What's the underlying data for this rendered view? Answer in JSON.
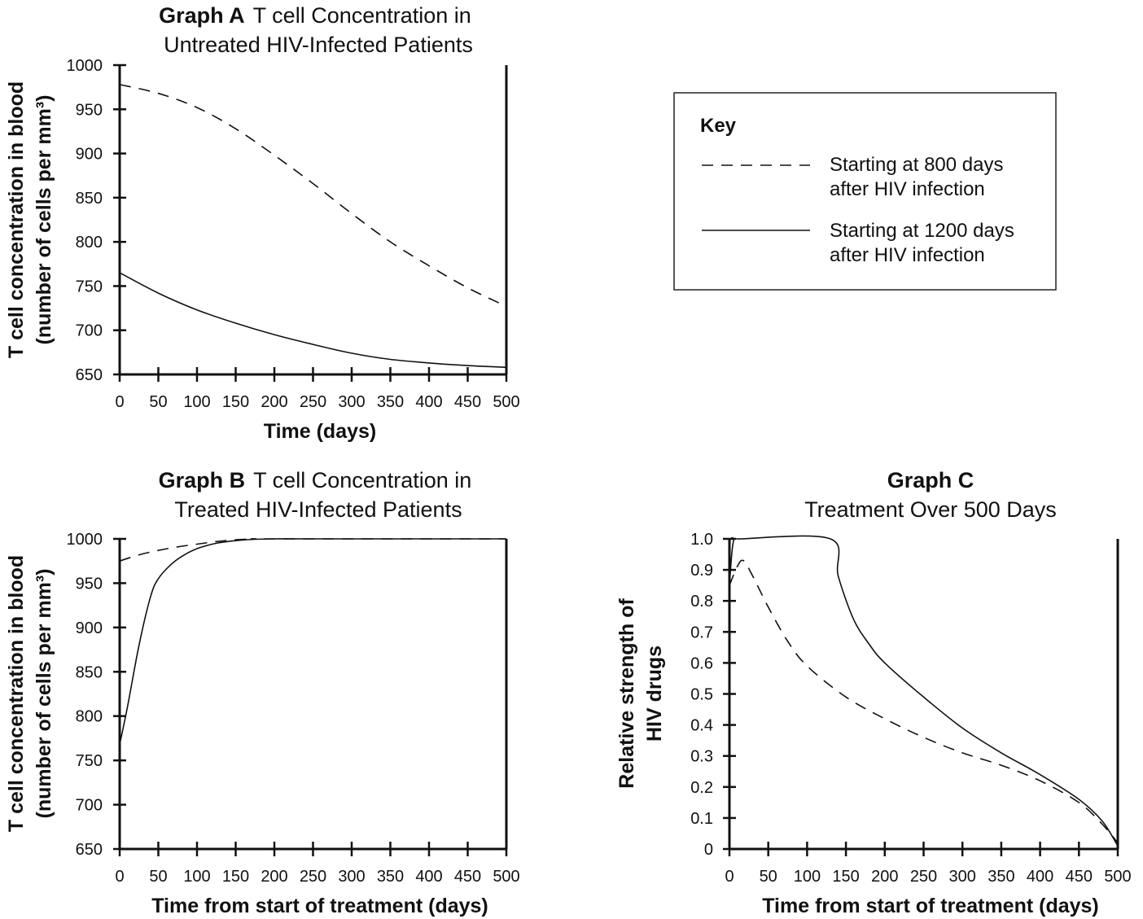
{
  "chart_data": [
    {
      "id": "A",
      "type": "line",
      "title_bold": "Graph A",
      "title_line1": "T cell Concentration in",
      "title_line2": "Untreated HIV-Infected Patients",
      "xlabel": "Time (days)",
      "ylabel_line1": "T cell concentration in blood",
      "ylabel_line2": "(number of cells per mm³)",
      "xlim": [
        0,
        500
      ],
      "ylim": [
        650,
        1000
      ],
      "xticks": [
        0,
        50,
        100,
        150,
        200,
        250,
        300,
        350,
        400,
        450,
        500
      ],
      "yticks": [
        650,
        700,
        750,
        800,
        850,
        900,
        950,
        1000
      ],
      "series": [
        {
          "style": "dashed",
          "x": [
            0,
            50,
            100,
            150,
            200,
            250,
            300,
            350,
            400,
            450,
            500
          ],
          "y": [
            978,
            968,
            952,
            928,
            898,
            866,
            832,
            800,
            773,
            748,
            727
          ]
        },
        {
          "style": "solid",
          "x": [
            0,
            50,
            100,
            150,
            200,
            250,
            300,
            350,
            400,
            450,
            500
          ],
          "y": [
            765,
            742,
            723,
            708,
            695,
            684,
            674,
            667,
            663,
            660,
            658
          ]
        }
      ]
    },
    {
      "id": "B",
      "type": "line",
      "title_bold": "Graph B",
      "title_line1": "T cell Concentration in",
      "title_line2": "Treated HIV-Infected Patients",
      "xlabel": "Time from start of treatment (days)",
      "ylabel_line1": "T cell concentration in blood",
      "ylabel_line2": "(number of cells per mm³)",
      "xlim": [
        0,
        500
      ],
      "ylim": [
        650,
        1000
      ],
      "xticks": [
        0,
        50,
        100,
        150,
        200,
        250,
        300,
        350,
        400,
        450,
        500
      ],
      "yticks": [
        650,
        700,
        750,
        800,
        850,
        900,
        950,
        1000
      ],
      "series": [
        {
          "style": "dashed",
          "x": [
            0,
            25,
            50,
            75,
            100,
            125,
            150,
            175,
            200,
            500
          ],
          "y": [
            975,
            982,
            987,
            991,
            994,
            997,
            999,
            1000,
            1000,
            1000
          ]
        },
        {
          "style": "solid",
          "x": [
            0,
            10,
            25,
            40,
            50,
            65,
            80,
            100,
            125,
            150,
            175,
            200,
            250,
            500
          ],
          "y": [
            768,
            810,
            880,
            935,
            955,
            970,
            980,
            989,
            995,
            998,
            999.5,
            1000,
            1000,
            1000
          ]
        }
      ]
    },
    {
      "id": "C",
      "type": "line",
      "title_bold": "Graph C",
      "title_line2": "Treatment Over 500 Days",
      "xlabel": "Time from start of treatment (days)",
      "ylabel_line1": "Relative strength of",
      "ylabel_line2": "HIV drugs",
      "xlim": [
        0,
        500
      ],
      "ylim": [
        0,
        1.0
      ],
      "xticks": [
        0,
        50,
        100,
        150,
        200,
        250,
        300,
        350,
        400,
        450,
        500
      ],
      "yticks": [
        "0",
        "0.1",
        "0.2",
        "0.3",
        "0.4",
        "0.5",
        "0.6",
        "0.7",
        "0.8",
        "0.9",
        "1.0"
      ],
      "series": [
        {
          "style": "dashed",
          "x": [
            0,
            10,
            18,
            30,
            50,
            75,
            100,
            150,
            200,
            250,
            300,
            350,
            400,
            450,
            480,
            500
          ],
          "y": [
            0.85,
            0.91,
            0.93,
            0.88,
            0.78,
            0.67,
            0.59,
            0.49,
            0.42,
            0.36,
            0.31,
            0.27,
            0.22,
            0.15,
            0.08,
            0.02
          ]
        },
        {
          "style": "solid",
          "x": [
            0,
            5,
            15,
            130,
            140,
            160,
            180,
            200,
            250,
            300,
            350,
            400,
            450,
            480,
            500
          ],
          "y": [
            0.85,
            0.99,
            1.0,
            1.0,
            0.88,
            0.74,
            0.66,
            0.6,
            0.49,
            0.39,
            0.31,
            0.24,
            0.16,
            0.09,
            0.01
          ]
        }
      ]
    }
  ],
  "key": {
    "title": "Key",
    "dashed_line1": "Starting at 800 days",
    "dashed_line2": "after HIV infection",
    "solid_line1": "Starting at 1200 days",
    "solid_line2": "after HIV infection"
  }
}
